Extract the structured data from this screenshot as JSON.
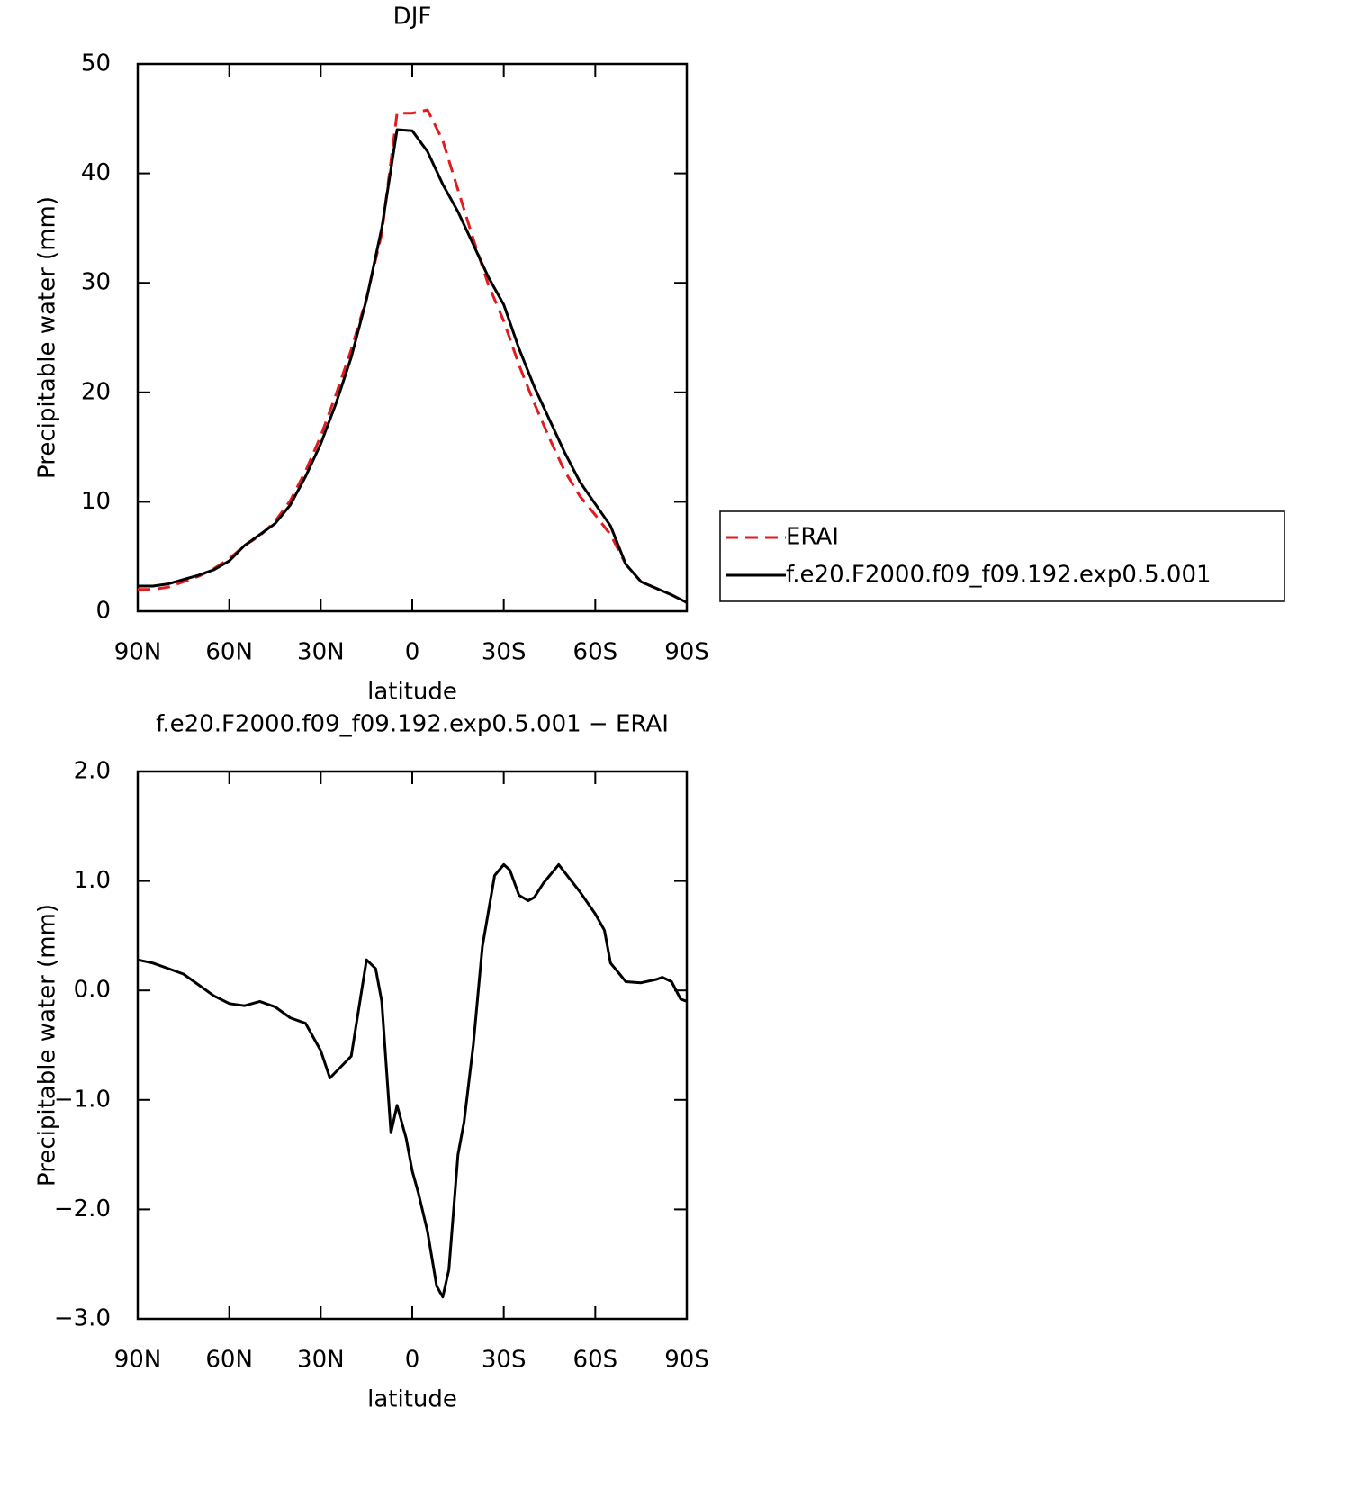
{
  "chart_data": [
    {
      "type": "line",
      "title": "DJF",
      "x_label": "latitude",
      "y_label": "Precipitable water (mm)",
      "x": [
        90,
        85,
        80,
        75,
        70,
        65,
        60,
        55,
        50,
        45,
        40,
        35,
        30,
        25,
        20,
        15,
        10,
        5,
        0,
        -5,
        -10,
        -15,
        -20,
        -25,
        -30,
        -35,
        -40,
        -45,
        -50,
        -55,
        -60,
        -65,
        -70,
        -75,
        -80,
        -85,
        -90
      ],
      "series": [
        {
          "name": "ERAI",
          "color": "#e41a1c",
          "dash": "dashed",
          "values": [
            2.0,
            2.0,
            2.2,
            2.7,
            3.2,
            3.9,
            4.8,
            6.0,
            6.9,
            8.2,
            10.1,
            12.8,
            16.0,
            19.8,
            23.9,
            28.6,
            34.5,
            45.5,
            45.5,
            45.8,
            43,
            38.5,
            34,
            29.8,
            26.5,
            22.5,
            19,
            15.8,
            12.8,
            10.5,
            8.8,
            7.0,
            4.3,
            2.7,
            2.1,
            1.5,
            0.8
          ]
        },
        {
          "name": "f.e20.F2000.f09_f09.192.exp0.5.001",
          "color": "#000000",
          "dash": "solid",
          "values": [
            2.3,
            2.3,
            2.5,
            2.9,
            3.3,
            3.8,
            4.6,
            6.0,
            7.0,
            8.0,
            9.7,
            12.3,
            15.3,
            19.0,
            23.2,
            28.5,
            35,
            44,
            43.9,
            42,
            39,
            36.5,
            33.5,
            30.5,
            28,
            24,
            20.5,
            17.5,
            14.5,
            11.8,
            9.8,
            7.8,
            4.3,
            2.7,
            2.1,
            1.5,
            0.8
          ]
        }
      ],
      "xlim": [
        90,
        -90
      ],
      "xticks": [
        {
          "value": 90,
          "label": "90N"
        },
        {
          "value": 60,
          "label": "60N"
        },
        {
          "value": 30,
          "label": "30N"
        },
        0,
        {
          "value": -30,
          "label": "30S"
        },
        {
          "value": -60,
          "label": "60S"
        },
        {
          "value": -90,
          "label": "90S"
        }
      ],
      "ylim": [
        0,
        50
      ],
      "yticks": [
        0,
        10,
        20,
        30,
        40,
        50
      ],
      "legend": "right"
    },
    {
      "type": "line",
      "title": "f.e20.F2000.f09_f09.192.exp0.5.001 − ERAI",
      "x_label": "latitude",
      "y_label": "Precipitable water (mm)",
      "x": [
        90,
        85,
        80,
        75,
        70,
        65,
        60,
        55,
        50,
        45,
        40,
        35,
        30,
        27,
        20,
        15,
        12,
        10,
        7,
        5,
        2,
        0,
        -2,
        -5,
        -8,
        -10,
        -12,
        -15,
        -17,
        -20,
        -23,
        -27,
        -30,
        -32,
        -35,
        -38,
        -40,
        -43,
        -48,
        -55,
        -60,
        -63,
        -65,
        -68,
        -70,
        -75,
        -80,
        -82,
        -85,
        -88,
        -90
      ],
      "values": [
        0.28,
        0.25,
        0.2,
        0.15,
        0.05,
        -0.05,
        -0.12,
        -0.14,
        -0.1,
        -0.15,
        -0.25,
        -0.3,
        -0.55,
        -0.8,
        -0.6,
        0.28,
        0.2,
        -0.1,
        -1.3,
        -1.05,
        -1.35,
        -1.65,
        -1.85,
        -2.2,
        -2.7,
        -2.8,
        -2.55,
        -1.5,
        -1.2,
        -0.5,
        0.4,
        1.05,
        1.15,
        1.1,
        0.87,
        0.82,
        0.85,
        0.98,
        1.15,
        0.9,
        0.7,
        0.55,
        0.25,
        0.15,
        0.08,
        0.07,
        0.1,
        0.12,
        0.08,
        -0.08,
        -0.1
      ],
      "color": "#000000",
      "xlim": [
        90,
        -90
      ],
      "xticks": [
        {
          "value": 90,
          "label": "90N"
        },
        {
          "value": 60,
          "label": "60N"
        },
        {
          "value": 30,
          "label": "30N"
        },
        0,
        {
          "value": -30,
          "label": "30S"
        },
        {
          "value": -60,
          "label": "60S"
        },
        {
          "value": -90,
          "label": "90S"
        }
      ],
      "ylim": [
        -3,
        2
      ],
      "yticks": [
        {
          "value": -3,
          "label": "−3.0"
        },
        {
          "value": -2,
          "label": "−2.0"
        },
        {
          "value": -1,
          "label": "−1.0"
        },
        {
          "value": 0,
          "label": "0.0"
        },
        {
          "value": 1,
          "label": "1.0"
        },
        {
          "value": 2,
          "label": "2.0"
        }
      ]
    }
  ]
}
